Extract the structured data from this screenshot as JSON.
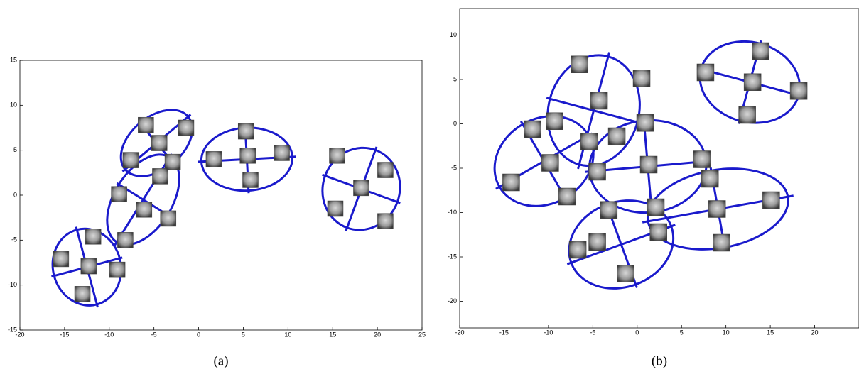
{
  "chart_data": [
    {
      "type": "scatter",
      "caption": "(a)",
      "color": "#1a1acc",
      "xlim": [
        -20,
        25
      ],
      "ylim": [
        -15,
        15
      ],
      "xticks": [
        -20,
        -15,
        -10,
        -5,
        0,
        5,
        10,
        15,
        20,
        25
      ],
      "yticks": [
        -15,
        -10,
        -5,
        0,
        5,
        10,
        15
      ],
      "x": [
        -5.9,
        -1.4,
        -4.4,
        -7.6,
        -2.9,
        -4.3,
        -8.9,
        -6.1,
        -3.4,
        -8.2,
        -11.8,
        -15.4,
        -12.3,
        -9.1,
        -13.0,
        1.7,
        5.3,
        5.5,
        9.3,
        5.8,
        15.5,
        20.9,
        18.2,
        15.3,
        20.9
      ],
      "y": [
        7.8,
        7.5,
        5.8,
        3.9,
        3.7,
        2.1,
        0.1,
        -1.6,
        -2.6,
        -5.0,
        -4.6,
        -7.1,
        -7.9,
        -8.3,
        -11.0,
        4.0,
        7.1,
        4.4,
        4.7,
        1.7,
        4.4,
        2.8,
        0.8,
        -1.5,
        -2.9
      ],
      "ellipses": [
        {
          "cx": -12.5,
          "cy": -8.0,
          "rx": 3.8,
          "ry": 4.3,
          "angle": -15
        },
        {
          "cx": -6.2,
          "cy": -0.5,
          "rx": 5.6,
          "ry": 3.2,
          "angle": -58
        },
        {
          "cx": -4.7,
          "cy": 5.8,
          "rx": 4.6,
          "ry": 2.9,
          "angle": -40
        },
        {
          "cx": 5.4,
          "cy": 4.0,
          "rx": 5.1,
          "ry": 3.5,
          "angle": -3
        },
        {
          "cx": 18.2,
          "cy": 0.7,
          "rx": 4.3,
          "ry": 4.6,
          "angle": 20
        }
      ]
    },
    {
      "type": "scatter",
      "caption": "(b)",
      "color": "#1a1acc",
      "xlim": [
        -20,
        25
      ],
      "ylim": [
        -23,
        13
      ],
      "xticks": [
        -20,
        -15,
        -10,
        -5,
        0,
        5,
        10,
        15,
        20
      ],
      "yticks": [
        -20,
        -15,
        -10,
        -5,
        0,
        5,
        10
      ],
      "x": [
        -6.5,
        0.5,
        -4.3,
        -9.3,
        -11.8,
        -2.3,
        0.9,
        -5.4,
        -9.8,
        1.3,
        -4.5,
        -14.2,
        7.3,
        8.2,
        -7.9,
        -3.2,
        2.1,
        9.0,
        15.1,
        2.4,
        -4.5,
        -6.7,
        9.5,
        -1.3,
        7.7,
        13.9,
        13.0,
        18.2,
        12.4
      ],
      "y": [
        6.7,
        5.1,
        2.6,
        0.3,
        -0.6,
        -1.4,
        0.1,
        -2.0,
        -4.4,
        -4.6,
        -5.4,
        -6.6,
        -4.0,
        -6.2,
        -8.2,
        -9.7,
        -9.4,
        -9.6,
        -8.6,
        -12.2,
        -13.3,
        -14.2,
        -13.4,
        -16.9,
        5.8,
        8.2,
        4.7,
        3.7,
        1.0
      ],
      "ellipses": [
        {
          "cx": -4.9,
          "cy": 1.5,
          "rx": 5.1,
          "ry": 6.3,
          "angle": 15
        },
        {
          "cx": 12.7,
          "cy": 4.7,
          "rx": 5.7,
          "ry": 4.5,
          "angle": 15
        },
        {
          "cx": -10.5,
          "cy": -4.2,
          "rx": 5.8,
          "ry": 4.8,
          "angle": -30
        },
        {
          "cx": 1.2,
          "cy": -4.8,
          "rx": 6.6,
          "ry": 5.2,
          "angle": -5
        },
        {
          "cx": -1.8,
          "cy": -13.6,
          "rx": 6.0,
          "ry": 4.8,
          "angle": -20
        },
        {
          "cx": 9.1,
          "cy": -9.6,
          "rx": 8.0,
          "ry": 4.4,
          "angle": -10
        }
      ]
    }
  ]
}
